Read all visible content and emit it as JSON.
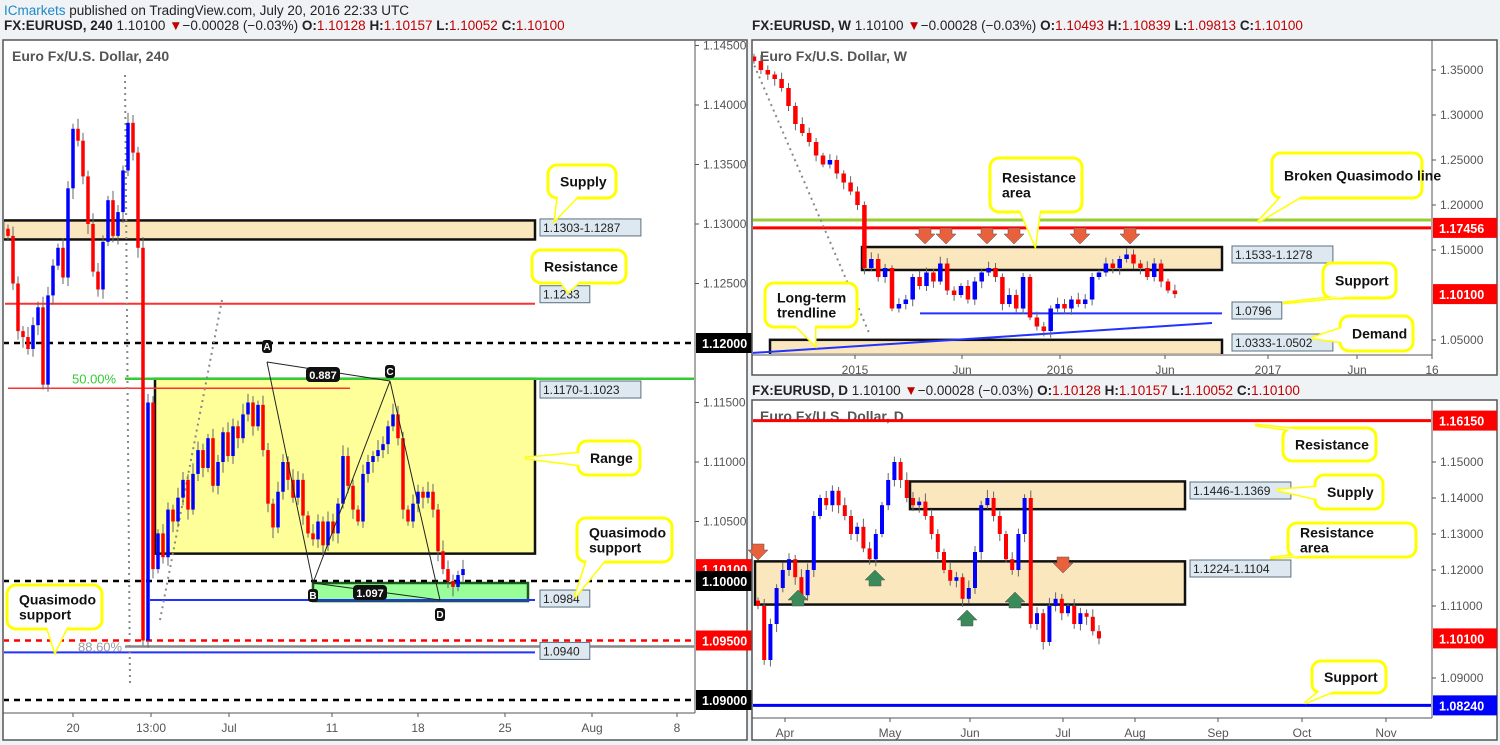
{
  "header": {
    "publisher": "ICmarkets",
    "published": " published on TradingView.com, July 20, 2016 22:33 UTC"
  },
  "panels": [
    {
      "symbol": "FX:EURUSD, 240",
      "last": "1.10100",
      "change": "−0.00028 (−0.03%)",
      "o": "1.10128",
      "h": "1.10157",
      "l": "1.10052",
      "c": "1.10100"
    },
    {
      "symbol": "FX:EURUSD, W",
      "last": "1.10100",
      "change": "−0.00028 (−0.03%)",
      "o": "1.10493",
      "h": "1.10839",
      "l": "1.09813",
      "c": "1.10100"
    },
    {
      "symbol": "FX:EURUSD, D",
      "last": "1.10100",
      "change": "−0.00028 (−0.03%)",
      "o": "1.10128",
      "h": "1.10157",
      "l": "1.10052",
      "c": "1.10100"
    }
  ],
  "colors": {
    "up": "#0000ff",
    "down": "#ff0000",
    "callout_border": "#ffff00",
    "zone": "#fbe7bd",
    "range": "#ffff99",
    "green_zone": "#99ff99",
    "price_label": "#ff0000"
  },
  "chart_data": [
    {
      "type": "candlestick",
      "title": "Euro Fx/U.S. Dollar, 240",
      "y_ticks": [
        "1.14500",
        "1.14000",
        "1.13500",
        "1.13000",
        "1.12500",
        "1.11500",
        "1.11000",
        "1.10500"
      ],
      "x_ticks": [
        "20",
        "13:00",
        "Jul",
        "11",
        "18",
        "25",
        "Aug",
        "8"
      ],
      "price_labels": [
        {
          "value": "1.12000",
          "color": "#000000"
        },
        {
          "value": "1.10100",
          "color": "#ff0000"
        },
        {
          "value": "1.10000",
          "color": "#000000"
        },
        {
          "value": "1.09500",
          "color": "#ff0000"
        },
        {
          "value": "1.09000",
          "color": "#000000"
        }
      ],
      "closes": [
        1.129,
        1.125,
        1.121,
        1.1205,
        1.1195,
        1.1215,
        1.123,
        1.1165,
        1.124,
        1.1265,
        1.128,
        1.1255,
        1.133,
        1.138,
        1.137,
        1.134,
        1.13,
        1.126,
        1.1245,
        1.1285,
        1.132,
        1.129,
        1.131,
        1.1345,
        1.1385,
        1.136,
        1.128,
        1.095,
        1.115,
        1.101,
        1.104,
        1.102,
        1.106,
        1.105,
        1.107,
        1.1085,
        1.106,
        1.109,
        1.111,
        1.1095,
        1.112,
        1.108,
        1.11,
        1.1125,
        1.1105,
        1.113,
        1.112,
        1.114,
        1.115,
        1.113,
        1.1148,
        1.111,
        1.1065,
        1.1045,
        1.1075,
        1.11,
        1.1085,
        1.107,
        1.1085,
        1.1055,
        1.104,
        1.1035,
        1.105,
        1.103,
        1.105,
        1.104,
        1.1065,
        1.1105,
        1.108,
        1.106,
        1.105,
        1.109,
        1.11,
        1.1105,
        1.111,
        1.1115,
        1.113,
        1.114,
        1.112,
        1.106,
        1.105,
        1.1065,
        1.1075,
        1.107,
        1.1075,
        1.106,
        1.1025,
        1.101,
        1.1,
        1.0995,
        1.1005,
        1.101
      ],
      "zones": [
        {
          "label": "1.1303-1.1287",
          "top": 1.1303,
          "bottom": 1.1287,
          "callout": "Supply"
        },
        {
          "label": "1.1170-1.1023",
          "top": 1.117,
          "bottom": 1.1023,
          "callout": "Range"
        }
      ],
      "levels": [
        {
          "label": "1.1233",
          "value": 1.1233,
          "callout": "Resistance"
        },
        {
          "label": "1.0984",
          "value": 1.0984,
          "callout": "Quasimodo support"
        },
        {
          "label": "1.0940",
          "value": 1.094,
          "callout": "Quasimodo support"
        }
      ],
      "fib_labels": [
        "50.00%",
        "88.60%"
      ],
      "harmonic": {
        "points": [
          "A",
          "B",
          "C",
          "D"
        ],
        "ratios": [
          "0.887",
          "1.097"
        ]
      }
    },
    {
      "type": "candlestick",
      "title": "Euro Fx/U.S. Dollar, W",
      "y_ticks": [
        "1.35000",
        "1.30000",
        "1.25000",
        "1.20000",
        "1.15000",
        "1.05000"
      ],
      "x_ticks": [
        "2015",
        "Jun",
        "2016",
        "Jun",
        "2017",
        "Jun",
        "16"
      ],
      "price_labels": [
        {
          "value": "1.17456",
          "color": "#ff0000"
        },
        {
          "value": "1.10100",
          "color": "#ff0000"
        }
      ],
      "closes": [
        1.36,
        1.35,
        1.345,
        1.34,
        1.33,
        1.31,
        1.29,
        1.28,
        1.27,
        1.255,
        1.245,
        1.25,
        1.235,
        1.225,
        1.215,
        1.2,
        1.13,
        1.14,
        1.12,
        1.13,
        1.085,
        1.09,
        1.095,
        1.12,
        1.11,
        1.125,
        1.115,
        1.135,
        1.105,
        1.1,
        1.11,
        1.095,
        1.115,
        1.125,
        1.13,
        1.12,
        1.09,
        1.1,
        1.085,
        1.12,
        1.075,
        1.065,
        1.06,
        1.085,
        1.09,
        1.085,
        1.095,
        1.09,
        1.095,
        1.12,
        1.125,
        1.135,
        1.13,
        1.14,
        1.145,
        1.135,
        1.13,
        1.12,
        1.135,
        1.115,
        1.105,
        1.101
      ],
      "zones": [
        {
          "label": "1.1533-1.1278",
          "top": 1.1533,
          "bottom": 1.1278,
          "callout": "Resistance area"
        },
        {
          "label": "1.0333-1.0502",
          "top": 1.0502,
          "bottom": 1.0333,
          "callout": "Demand"
        }
      ],
      "levels": [
        {
          "label": "1.0796",
          "value": 1.0796,
          "callout": "Support"
        },
        {
          "label": "",
          "value": 1.17456,
          "callout": "Broken Quasimodo line"
        }
      ],
      "trendline_callout": "Long-term trendline"
    },
    {
      "type": "candlestick",
      "title": "Euro Fx/U.S. Dollar, D",
      "y_ticks": [
        "1.15000",
        "1.14000",
        "1.13000",
        "1.12000",
        "1.11000",
        "1.09000"
      ],
      "x_ticks": [
        "Apr",
        "May",
        "Jun",
        "Jul",
        "Aug",
        "Sep",
        "Oct",
        "Nov"
      ],
      "price_labels": [
        {
          "value": "1.16150",
          "color": "#ff0000"
        },
        {
          "value": "1.10100",
          "color": "#ff0000"
        },
        {
          "value": "1.08240",
          "color": "#0000ff"
        }
      ],
      "closes": [
        1.11,
        1.095,
        1.105,
        1.115,
        1.12,
        1.123,
        1.118,
        1.113,
        1.12,
        1.135,
        1.14,
        1.138,
        1.142,
        1.138,
        1.135,
        1.13,
        1.132,
        1.126,
        1.123,
        1.13,
        1.138,
        1.145,
        1.15,
        1.145,
        1.14,
        1.138,
        1.139,
        1.135,
        1.13,
        1.125,
        1.12,
        1.117,
        1.118,
        1.112,
        1.115,
        1.125,
        1.138,
        1.14,
        1.135,
        1.13,
        1.123,
        1.12,
        1.13,
        1.14,
        1.105,
        1.108,
        1.1,
        1.11,
        1.112,
        1.108,
        1.11,
        1.105,
        1.108,
        1.107,
        1.103,
        1.101
      ],
      "zones": [
        {
          "label": "1.1446-1.1369",
          "top": 1.1446,
          "bottom": 1.1369,
          "callout": "Supply"
        },
        {
          "label": "1.1224-1.1104",
          "top": 1.1224,
          "bottom": 1.1104,
          "callout": "Resistance area"
        }
      ],
      "levels": [
        {
          "label": "",
          "value": 1.1615,
          "callout": "Resistance"
        },
        {
          "label": "",
          "value": 1.0824,
          "callout": "Support"
        }
      ]
    }
  ]
}
